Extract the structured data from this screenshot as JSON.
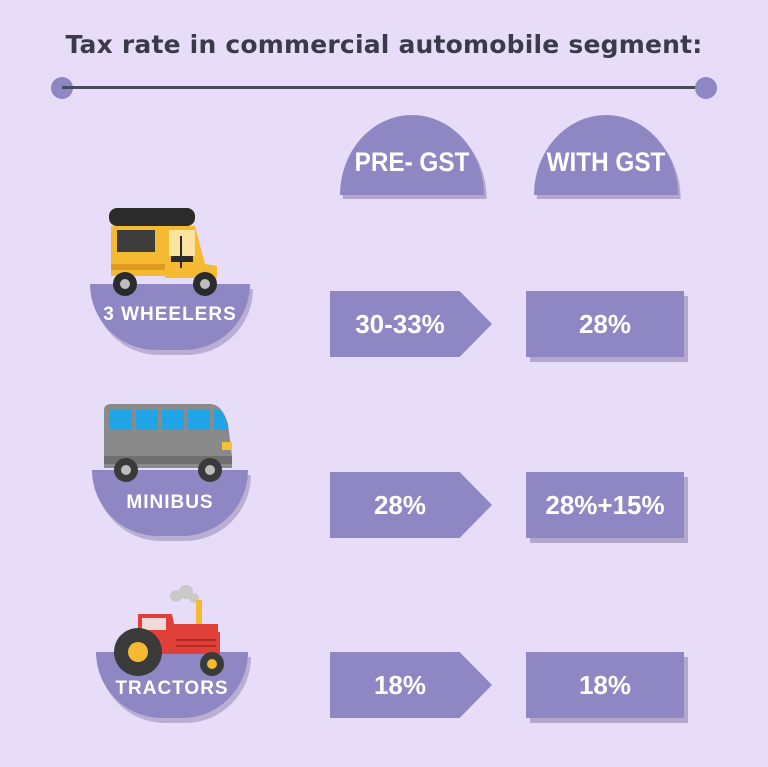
{
  "title": "Tax rate in commercial automobile segment:",
  "columns": {
    "pre_gst": "PRE- GST",
    "with_gst": "WITH GST"
  },
  "rows": [
    {
      "label": "3 WHEELERS",
      "icon": "auto-rickshaw-icon",
      "pre_gst": "30-33%",
      "with_gst": "28%"
    },
    {
      "label": "MINIBUS",
      "icon": "minibus-icon",
      "pre_gst": "28%",
      "with_gst": "28%+15%"
    },
    {
      "label": "TRACTORS",
      "icon": "tractor-icon",
      "pre_gst": "18%",
      "with_gst": "18%"
    }
  ],
  "colors": {
    "background": "#e8ddf9",
    "accent": "#8f87c3",
    "rule": "#4a4a5c"
  }
}
